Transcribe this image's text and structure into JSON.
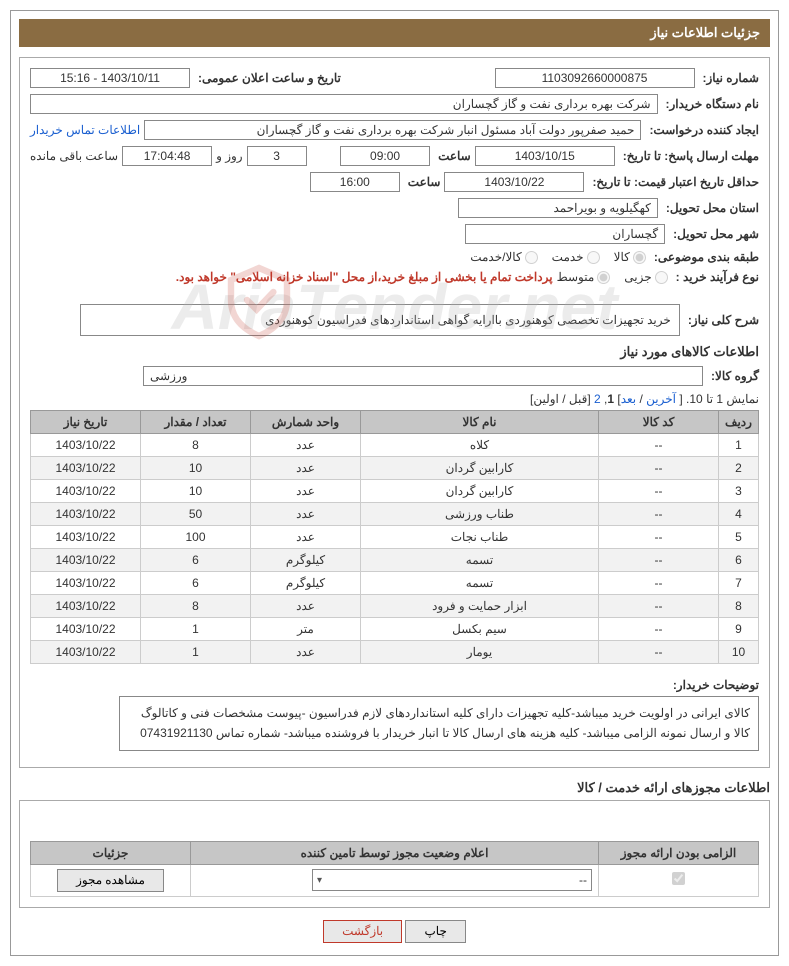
{
  "header": {
    "title": "جزئیات اطلاعات نیاز"
  },
  "form": {
    "req_number_label": "شماره نیاز:",
    "req_number": "1103092660000875",
    "announce_label": "تاریخ و ساعت اعلان عمومی:",
    "announce_value": "1403/10/11 - 15:16",
    "buyer_org_label": "نام دستگاه خریدار:",
    "buyer_org": "شرکت بهره برداری نفت و گاز گچساران",
    "requester_label": "ایجاد کننده درخواست:",
    "requester": "حمید  صفرپور دولت آباد مسئول انبار شرکت بهره برداری نفت و گاز گچساران",
    "buyer_contact_link": "اطلاعات تماس خریدار",
    "deadline_label": "مهلت ارسال پاسخ: تا تاریخ:",
    "deadline_date": "1403/10/15",
    "time_label": "ساعت",
    "deadline_time": "09:00",
    "days_remaining": "3",
    "days_remaining_suffix": "روز و",
    "hours_remaining": "17:04:48",
    "hours_remaining_suffix": "ساعت باقی مانده",
    "validity_label": "حداقل تاریخ اعتبار قیمت: تا تاریخ:",
    "validity_date": "1403/10/22",
    "validity_time": "16:00",
    "province_label": "استان محل تحویل:",
    "province": "کهگیلویه و بویراحمد",
    "city_label": "شهر محل تحویل:",
    "city": "گچساران",
    "category_label": "طبقه بندی موضوعی:",
    "category_options": [
      "کالا",
      "خدمت",
      "کالا/خدمت"
    ],
    "category_selected": 0,
    "process_label": "نوع فرآیند خرید :",
    "process_options": [
      "جزیی",
      "متوسط"
    ],
    "process_selected": 1,
    "process_note": "پرداخت تمام یا بخشی از مبلغ خرید،از محل \"اسناد خزانه اسلامی\" خواهد بود.",
    "summary_label": "شرح کلی نیاز:",
    "summary_text": "خرید تجهیزات تخصصی کوهنوردی باارایه گواهی استانداردهای فدراسیون کوهنوردی",
    "items_heading": "اطلاعات کالاهای مورد نیاز",
    "group_label": "گروه کالا:",
    "group_value": "ورزشی"
  },
  "pager": {
    "text_prefix": "نمایش 1 تا 10. [ ",
    "last": "آخرین",
    "sep1": " / ",
    "next": "بعد",
    "sep2": "] ",
    "p1": "1",
    "comma": ", ",
    "p2": "2",
    "suffix": " [قبل / اولین]"
  },
  "table": {
    "headers": [
      "ردیف",
      "کد کالا",
      "نام کالا",
      "واحد شمارش",
      "تعداد / مقدار",
      "تاریخ نیاز"
    ],
    "rows": [
      [
        "1",
        "--",
        "کلاه",
        "عدد",
        "8",
        "1403/10/22"
      ],
      [
        "2",
        "--",
        "کارابین گردان",
        "عدد",
        "10",
        "1403/10/22"
      ],
      [
        "3",
        "--",
        "کارابین گردان",
        "عدد",
        "10",
        "1403/10/22"
      ],
      [
        "4",
        "--",
        "طناب ورزشی",
        "عدد",
        "50",
        "1403/10/22"
      ],
      [
        "5",
        "--",
        "طناب نجات",
        "عدد",
        "100",
        "1403/10/22"
      ],
      [
        "6",
        "--",
        "تسمه",
        "کیلوگرم",
        "6",
        "1403/10/22"
      ],
      [
        "7",
        "--",
        "تسمه",
        "کیلوگرم",
        "6",
        "1403/10/22"
      ],
      [
        "8",
        "--",
        "ابزار حمایت و فرود",
        "عدد",
        "8",
        "1403/10/22"
      ],
      [
        "9",
        "--",
        "سیم بکسل",
        "متر",
        "1",
        "1403/10/22"
      ],
      [
        "10",
        "--",
        "یومار",
        "عدد",
        "1",
        "1403/10/22"
      ]
    ]
  },
  "buyer_notes": {
    "label": "توضیحات خریدار:",
    "text": "کالای ایرانی در اولویت خرید میباشد-کلیه تجهیزات دارای کلیه استانداردهای لازم فدراسیون -پیوست مشخصات فنی و کاتالوگ کالا  و ارسال نمونه الزامی میباشد- کلیه هزینه های ارسال  کالا  تا انبار خریدار  با فروشنده میباشد- شماره تماس 07431921130"
  },
  "permits": {
    "heading": "اطلاعات مجوزهای ارائه خدمت / کالا",
    "headers": [
      "الزامی بودن ارائه مجوز",
      "اعلام وضعیت مجوز توسط تامین کننده",
      "جزئیات"
    ],
    "select_placeholder": "--",
    "view_btn": "مشاهده مجوز"
  },
  "footer": {
    "print": "چاپ",
    "back": "بازگشت"
  },
  "watermark": "AriaTender.net"
}
